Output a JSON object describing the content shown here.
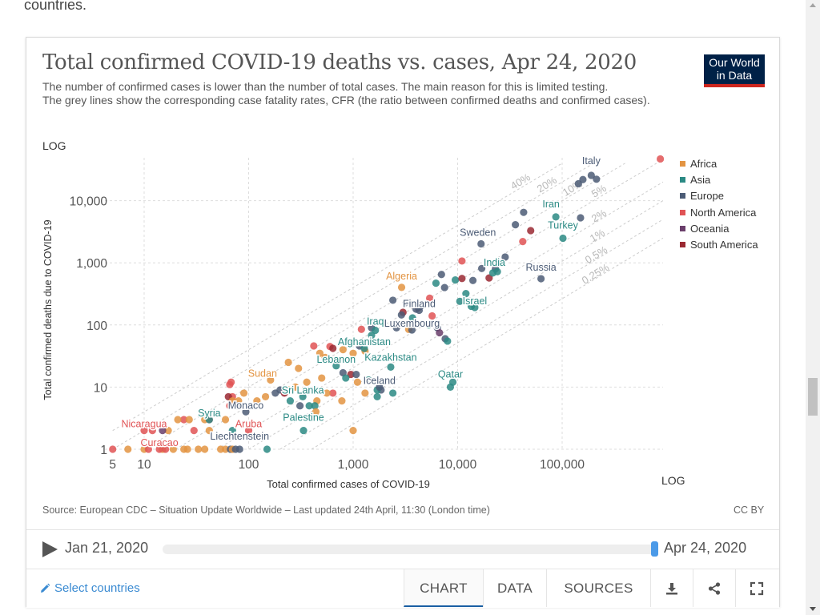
{
  "intro_text": "countries.",
  "chart": {
    "title": "Total confirmed COVID-19 deaths vs. cases, Apr 24, 2020",
    "subtitle_lines": [
      "The number of confirmed cases is lower than the number of total cases. The main reason for this is limited testing.",
      "The grey lines show the corresponding case fatality rates, CFR (the ratio between confirmed deaths and confirmed cases)."
    ],
    "logo_line1": "Our World",
    "logo_line2": "in Data",
    "y_scale_label": "LOG",
    "x_scale_label": "LOG",
    "source": "Source: European CDC – Situation Update Worldwide – Last updated 24th April, 11:30 (London time)",
    "license": "CC BY"
  },
  "chart_data": {
    "type": "scatter",
    "title": "Total confirmed COVID-19 deaths vs. cases, Apr 24, 2020",
    "xlabel": "Total confirmed cases of COVID-19",
    "ylabel": "Total confirmed deaths due to COVID-19",
    "xscale": "log",
    "yscale": "log",
    "xlim": [
      5,
      1000000
    ],
    "ylim": [
      1,
      50000
    ],
    "x_ticks": [
      5,
      10,
      100,
      1000,
      10000,
      100000
    ],
    "x_tick_labels": [
      "5",
      "10",
      "100",
      "1,000",
      "10,000",
      "100,000"
    ],
    "y_ticks": [
      1,
      10,
      100,
      1000,
      10000
    ],
    "y_tick_labels": [
      "1",
      "10",
      "100",
      "1,000",
      "10,000"
    ],
    "cfr_lines": [
      {
        "label": "40%",
        "ratio": 0.4
      },
      {
        "label": "20%",
        "ratio": 0.2
      },
      {
        "label": "10%",
        "ratio": 0.1
      },
      {
        "label": "5%",
        "ratio": 0.05
      },
      {
        "label": "2%",
        "ratio": 0.02
      },
      {
        "label": "1%",
        "ratio": 0.01
      },
      {
        "label": "0.5%",
        "ratio": 0.005
      },
      {
        "label": "0.25%",
        "ratio": 0.0025
      }
    ],
    "legend": [
      {
        "name": "Africa",
        "color": "#e39442"
      },
      {
        "name": "Asia",
        "color": "#2b8a84"
      },
      {
        "name": "Europe",
        "color": "#4c5c76"
      },
      {
        "name": "North America",
        "color": "#e05355"
      },
      {
        "name": "Oceania",
        "color": "#6a3e6b"
      },
      {
        "name": "South America",
        "color": "#9a2932"
      }
    ],
    "labeled_points": [
      {
        "label": "Italy",
        "region": "Europe",
        "cases": 189973,
        "deaths": 25549
      },
      {
        "label": "Iran",
        "region": "Asia",
        "cases": 87026,
        "deaths": 5481
      },
      {
        "label": "Turkey",
        "region": "Asia",
        "cases": 101790,
        "deaths": 2491
      },
      {
        "label": "Sweden",
        "region": "Europe",
        "cases": 16755,
        "deaths": 2021
      },
      {
        "label": "India",
        "region": "Asia",
        "cases": 21700,
        "deaths": 686
      },
      {
        "label": "Russia",
        "region": "Europe",
        "cases": 62773,
        "deaths": 555
      },
      {
        "label": "Algeria",
        "region": "Africa",
        "cases": 2910,
        "deaths": 402
      },
      {
        "label": "Israel",
        "region": "Asia",
        "cases": 14592,
        "deaths": 191
      },
      {
        "label": "Finland",
        "region": "Europe",
        "cases": 4284,
        "deaths": 172
      },
      {
        "label": "Iraq",
        "region": "Asia",
        "cases": 1631,
        "deaths": 82
      },
      {
        "label": "Luxembourg",
        "region": "Europe",
        "cases": 3654,
        "deaths": 83
      },
      {
        "label": "Afghanistan",
        "region": "Asia",
        "cases": 1279,
        "deaths": 42
      },
      {
        "label": "Lebanon",
        "region": "Asia",
        "cases": 688,
        "deaths": 22
      },
      {
        "label": "Kazakhstan",
        "region": "Asia",
        "cases": 2289,
        "deaths": 21
      },
      {
        "label": "Sudan",
        "region": "Africa",
        "cases": 162,
        "deaths": 13
      },
      {
        "label": "Iceland",
        "region": "Europe",
        "cases": 1785,
        "deaths": 10
      },
      {
        "label": "Qatar",
        "region": "Asia",
        "cases": 8525,
        "deaths": 10
      },
      {
        "label": "Sri Lanka",
        "region": "Asia",
        "cases": 330,
        "deaths": 7
      },
      {
        "label": "Monaco",
        "region": "Europe",
        "cases": 94,
        "deaths": 4
      },
      {
        "label": "Syria",
        "region": "Asia",
        "cases": 42,
        "deaths": 3
      },
      {
        "label": "Nicaragua",
        "region": "North America",
        "cases": 10,
        "deaths": 2
      },
      {
        "label": "Aruba",
        "region": "North America",
        "cases": 100,
        "deaths": 2
      },
      {
        "label": "Palestine",
        "region": "Asia",
        "cases": 335,
        "deaths": 2
      },
      {
        "label": "Curacao",
        "region": "North America",
        "cases": 14,
        "deaths": 1
      },
      {
        "label": "Liechtenstein",
        "region": "Europe",
        "cases": 82,
        "deaths": 1
      }
    ],
    "points": [
      {
        "region": "North America",
        "cases": 870000,
        "deaths": 47000
      },
      {
        "region": "Europe",
        "cases": 213000,
        "deaths": 22157
      },
      {
        "region": "Europe",
        "cases": 158000,
        "deaths": 21856
      },
      {
        "region": "Europe",
        "cases": 143000,
        "deaths": 18738
      },
      {
        "region": "Europe",
        "cases": 150000,
        "deaths": 5300
      },
      {
        "region": "Europe",
        "cases": 42800,
        "deaths": 6490
      },
      {
        "region": "Europe",
        "cases": 35700,
        "deaths": 4100
      },
      {
        "region": "South America",
        "cases": 50000,
        "deaths": 3300
      },
      {
        "region": "North America",
        "cases": 42000,
        "deaths": 2200
      },
      {
        "region": "Europe",
        "cases": 28500,
        "deaths": 1240
      },
      {
        "region": "Europe",
        "cases": 23000,
        "deaths": 800
      },
      {
        "region": "Asia",
        "cases": 24000,
        "deaths": 720
      },
      {
        "region": "Europe",
        "cases": 17000,
        "deaths": 810
      },
      {
        "region": "South America",
        "cases": 20000,
        "deaths": 570
      },
      {
        "region": "Europe",
        "cases": 14000,
        "deaths": 520
      },
      {
        "region": "North America",
        "cases": 11000,
        "deaths": 1070
      },
      {
        "region": "Asia",
        "cases": 9500,
        "deaths": 530
      },
      {
        "region": "South America",
        "cases": 11000,
        "deaths": 560
      },
      {
        "region": "Europe",
        "cases": 7000,
        "deaths": 650
      },
      {
        "region": "Asia",
        "cases": 6200,
        "deaths": 470
      },
      {
        "region": "Europe",
        "cases": 7500,
        "deaths": 400
      },
      {
        "region": "Asia",
        "cases": 12000,
        "deaths": 320
      },
      {
        "region": "Asia",
        "cases": 10500,
        "deaths": 240
      },
      {
        "region": "Asia",
        "cases": 13500,
        "deaths": 200
      },
      {
        "region": "South America",
        "cases": 4200,
        "deaths": 190
      },
      {
        "region": "Europe",
        "cases": 4400,
        "deaths": 200
      },
      {
        "region": "North America",
        "cases": 5400,
        "deaths": 270
      },
      {
        "region": "Europe",
        "cases": 2400,
        "deaths": 250
      },
      {
        "region": "Europe",
        "cases": 3200,
        "deaths": 230
      },
      {
        "region": "South America",
        "cases": 3000,
        "deaths": 160
      },
      {
        "region": "Europe",
        "cases": 2900,
        "deaths": 145
      },
      {
        "region": "Asia",
        "cases": 3700,
        "deaths": 130
      },
      {
        "region": "Europe",
        "cases": 4000,
        "deaths": 180
      },
      {
        "region": "North America",
        "cases": 5700,
        "deaths": 140
      },
      {
        "region": "Asia",
        "cases": 5300,
        "deaths": 100
      },
      {
        "region": "Africa",
        "cases": 3400,
        "deaths": 85
      },
      {
        "region": "Europe",
        "cases": 2600,
        "deaths": 90
      },
      {
        "region": "Europe",
        "cases": 6400,
        "deaths": 90
      },
      {
        "region": "Oceania",
        "cases": 6700,
        "deaths": 75
      },
      {
        "region": "Europe",
        "cases": 7600,
        "deaths": 60
      },
      {
        "region": "Asia",
        "cases": 8000,
        "deaths": 55
      },
      {
        "region": "Europe",
        "cases": 1500,
        "deaths": 90
      },
      {
        "region": "Asia",
        "cases": 1500,
        "deaths": 68
      },
      {
        "region": "North America",
        "cases": 1200,
        "deaths": 85
      },
      {
        "region": "Europe",
        "cases": 950,
        "deaths": 50
      },
      {
        "region": "Europe",
        "cases": 1150,
        "deaths": 46
      },
      {
        "region": "Africa",
        "cases": 1300,
        "deaths": 38
      },
      {
        "region": "Africa",
        "cases": 1000,
        "deaths": 35
      },
      {
        "region": "Africa",
        "cases": 800,
        "deaths": 40
      },
      {
        "region": "North America",
        "cases": 600,
        "deaths": 45
      },
      {
        "region": "South America",
        "cases": 640,
        "deaths": 42
      },
      {
        "region": "North America",
        "cases": 420,
        "deaths": 46
      },
      {
        "region": "Africa",
        "cases": 480,
        "deaths": 35
      },
      {
        "region": "Africa",
        "cases": 540,
        "deaths": 30
      },
      {
        "region": "Africa",
        "cases": 300,
        "deaths": 20
      },
      {
        "region": "Africa",
        "cases": 240,
        "deaths": 25
      },
      {
        "region": "Europe",
        "cases": 800,
        "deaths": 17
      },
      {
        "region": "South America",
        "cases": 950,
        "deaths": 16
      },
      {
        "region": "Europe",
        "cases": 1070,
        "deaths": 16
      },
      {
        "region": "Asia",
        "cases": 850,
        "deaths": 14
      },
      {
        "region": "Africa",
        "cases": 500,
        "deaths": 14
      },
      {
        "region": "Africa",
        "cases": 360,
        "deaths": 12
      },
      {
        "region": "Asia",
        "cases": 1400,
        "deaths": 13
      },
      {
        "region": "Africa",
        "cases": 1100,
        "deaths": 12
      },
      {
        "region": "Europe",
        "cases": 1850,
        "deaths": 9
      },
      {
        "region": "Asia",
        "cases": 1700,
        "deaths": 9
      },
      {
        "region": "Asia",
        "cases": 2400,
        "deaths": 8
      },
      {
        "region": "Asia",
        "cases": 1700,
        "deaths": 7
      },
      {
        "region": "Asia",
        "cases": 9000,
        "deaths": 12
      },
      {
        "region": "Africa",
        "cases": 1300,
        "deaths": 8
      },
      {
        "region": "North America",
        "cases": 640,
        "deaths": 8
      },
      {
        "region": "Africa",
        "cases": 560,
        "deaths": 8
      },
      {
        "region": "Africa",
        "cases": 780,
        "deaths": 6
      },
      {
        "region": "Africa",
        "cases": 450,
        "deaths": 6
      },
      {
        "region": "Asia",
        "cases": 430,
        "deaths": 5
      },
      {
        "region": "Africa",
        "cases": 280,
        "deaths": 10
      },
      {
        "region": "Africa",
        "cases": 240,
        "deaths": 9
      },
      {
        "region": "Europe",
        "cases": 200,
        "deaths": 9
      },
      {
        "region": "South America",
        "cases": 220,
        "deaths": 8
      },
      {
        "region": "Europe",
        "cases": 180,
        "deaths": 8
      },
      {
        "region": "Africa",
        "cases": 145,
        "deaths": 7
      },
      {
        "region": "Africa",
        "cases": 120,
        "deaths": 6
      },
      {
        "region": "Asia",
        "cases": 250,
        "deaths": 6
      },
      {
        "region": "Europe",
        "cases": 310,
        "deaths": 5
      },
      {
        "region": "Africa",
        "cases": 440,
        "deaths": 4
      },
      {
        "region": "Asia",
        "cases": 380,
        "deaths": 5
      },
      {
        "region": "Africa",
        "cases": 90,
        "deaths": 8
      },
      {
        "region": "Africa",
        "cases": 80,
        "deaths": 6
      },
      {
        "region": "North America",
        "cases": 68,
        "deaths": 12
      },
      {
        "region": "North America",
        "cases": 66,
        "deaths": 11
      },
      {
        "region": "North America",
        "cases": 70,
        "deaths": 7
      },
      {
        "region": "South America",
        "cases": 64,
        "deaths": 7
      },
      {
        "region": "Africa",
        "cases": 70,
        "deaths": 6
      },
      {
        "region": "North America",
        "cases": 66,
        "deaths": 5
      },
      {
        "region": "Europe",
        "cases": 78,
        "deaths": 5
      },
      {
        "region": "Africa",
        "cases": 60,
        "deaths": 3
      },
      {
        "region": "North America",
        "cases": 42,
        "deaths": 3
      },
      {
        "region": "Africa",
        "cases": 38,
        "deaths": 3
      },
      {
        "region": "North America",
        "cases": 24,
        "deaths": 3
      },
      {
        "region": "Africa",
        "cases": 27,
        "deaths": 3
      },
      {
        "region": "Africa",
        "cases": 21,
        "deaths": 3
      },
      {
        "region": "Asia",
        "cases": 70,
        "deaths": 2
      },
      {
        "region": "Africa",
        "cases": 42,
        "deaths": 2
      },
      {
        "region": "North America",
        "cases": 30,
        "deaths": 2
      },
      {
        "region": "Africa",
        "cases": 17,
        "deaths": 2
      },
      {
        "region": "North America",
        "cases": 12,
        "deaths": 2
      },
      {
        "region": "Oceania",
        "cases": 15,
        "deaths": 2
      },
      {
        "region": "Africa",
        "cases": 1000,
        "deaths": 2
      },
      {
        "region": "Asia",
        "cases": 150,
        "deaths": 1
      },
      {
        "region": "North America",
        "cases": 5,
        "deaths": 1
      },
      {
        "region": "Africa",
        "cases": 7,
        "deaths": 1
      },
      {
        "region": "Africa",
        "cases": 10,
        "deaths": 1
      },
      {
        "region": "North America",
        "cases": 11,
        "deaths": 1
      },
      {
        "region": "Africa",
        "cases": 15,
        "deaths": 1
      },
      {
        "region": "North America",
        "cases": 16,
        "deaths": 1
      },
      {
        "region": "Africa",
        "cases": 19,
        "deaths": 1
      },
      {
        "region": "Africa",
        "cases": 24,
        "deaths": 1
      },
      {
        "region": "Africa",
        "cases": 26,
        "deaths": 1
      },
      {
        "region": "Africa",
        "cases": 33,
        "deaths": 1
      },
      {
        "region": "Africa",
        "cases": 38,
        "deaths": 1
      },
      {
        "region": "Africa",
        "cases": 54,
        "deaths": 1
      },
      {
        "region": "Africa",
        "cases": 60,
        "deaths": 1
      },
      {
        "region": "Europe",
        "cases": 67,
        "deaths": 1
      },
      {
        "region": "Africa",
        "cases": 70,
        "deaths": 1
      },
      {
        "region": "Europe",
        "cases": 75,
        "deaths": 1
      }
    ]
  },
  "timeline": {
    "play_icon": "play-icon",
    "start_date": "Jan 21, 2020",
    "end_date": "Apr 24, 2020",
    "position_fraction": 1.0
  },
  "footer": {
    "select_countries": "Select countries",
    "tabs": [
      {
        "label": "CHART",
        "active": true
      },
      {
        "label": "DATA",
        "active": false
      },
      {
        "label": "SOURCES",
        "active": false
      }
    ],
    "tools": [
      "download-icon",
      "share-icon",
      "fullscreen-icon"
    ]
  }
}
